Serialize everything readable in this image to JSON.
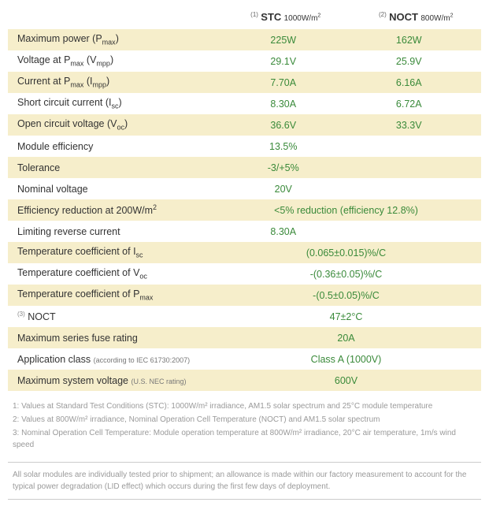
{
  "colors": {
    "row_alt_bg": "#f6eecb",
    "row_bg": "#ffffff",
    "value_text": "#3a8a3a",
    "label_text": "#333333",
    "footnote_text": "#9a9a9a",
    "divider": "#cccccc"
  },
  "header": {
    "col1": {
      "sup": "(1)",
      "main": "STC",
      "unit": "1000W/m",
      "unit_sup": "2"
    },
    "col2": {
      "sup": "(2)",
      "main": "NOCT",
      "unit": "800W/m",
      "unit_sup": "2"
    }
  },
  "rows": [
    {
      "label": "Maximum power (P",
      "label_sub": "max",
      "label_tail": ")",
      "v1": "225W",
      "v2": "162W"
    },
    {
      "label": "Voltage at P",
      "label_sub": "max",
      "label_tail": " (V",
      "label_sub2": "mpp",
      "label_tail2": ")",
      "v1": "29.1V",
      "v2": "25.9V"
    },
    {
      "label": "Current at P",
      "label_sub": "max",
      "label_tail": " (I",
      "label_sub2": "mpp",
      "label_tail2": ")",
      "v1": "7.70A",
      "v2": "6.16A"
    },
    {
      "label": "Short circuit current (I",
      "label_sub": "sc",
      "label_tail": ")",
      "v1": "8.30A",
      "v2": "6.72A"
    },
    {
      "label": "Open circuit voltage (V",
      "label_sub": "oc",
      "label_tail": ")",
      "v1": "36.6V",
      "v2": "33.3V"
    },
    {
      "label": "Module efficiency",
      "v1": "13.5%",
      "v2": ""
    },
    {
      "label": "Tolerance",
      "v1": "-3/+5%",
      "v2": ""
    },
    {
      "label": "Nominal voltage",
      "v1": "20V",
      "v2": ""
    },
    {
      "label": "Efficiency reduction at 200W/m",
      "label_sup": "2",
      "span": true,
      "v1": "<5% reduction (efficiency 12.8%)"
    },
    {
      "label": "Limiting reverse current",
      "v1": "8.30A",
      "v2": ""
    },
    {
      "label": "Temperature coefficient of I",
      "label_sub": "sc",
      "span": true,
      "v1": "(0.065±0.015)%/C"
    },
    {
      "label": "Temperature coefficient of V",
      "label_sub": "oc",
      "span": true,
      "v1": "-(0.36±0.05)%/C"
    },
    {
      "label": "Temperature coefficient of P",
      "label_sub": "max",
      "span": true,
      "v1": "-(0.5±0.05)%/C"
    },
    {
      "presup": "(3)",
      "label": " NOCT",
      "span": true,
      "v1": "47±2°C"
    },
    {
      "label": "Maximum series fuse rating",
      "span": true,
      "v1": "20A"
    },
    {
      "label": "Application class ",
      "note": "(according to IEC 61730:2007)",
      "span": true,
      "v1": "Class A (1000V)"
    },
    {
      "label": "Maximum system voltage ",
      "note": "(U.S. NEC rating)",
      "span": true,
      "v1": "600V"
    }
  ],
  "footnotes": [
    "1: Values at Standard Test Conditions (STC): 1000W/m² irradiance, AM1.5 solar spectrum and 25°C module temperature",
    "2: Values at 800W/m² irradiance, Nominal Operation Cell Temperature (NOCT) and AM1.5 solar spectrum",
    "3: Nominal Operation Cell Temperature: Module operation temperature at 800W/m² irradiance, 20°C air temperature, 1m/s wind speed"
  ],
  "disclaimer": "All solar modules are individually tested prior to shipment; an allowance is made within our factory measurement to account for the typical power degradation (LID effect) which occurs during the first few days of deployment."
}
